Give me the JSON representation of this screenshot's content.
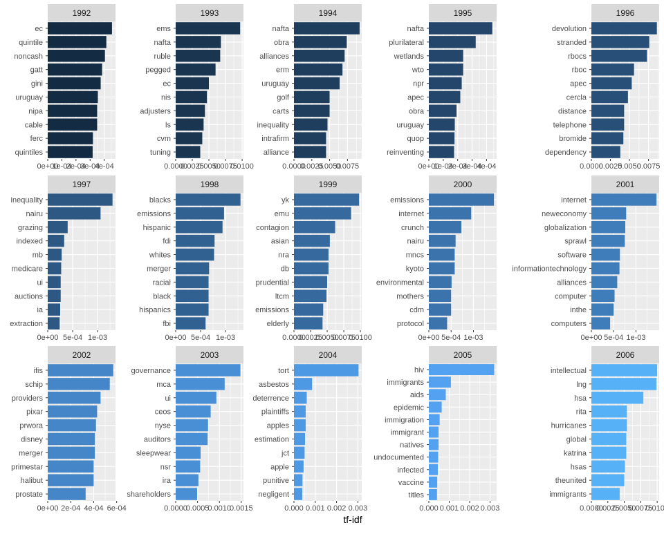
{
  "chart_data": {
    "type": "bar",
    "orientation": "horizontal",
    "layout": "facet-grid",
    "xlabel": "tf-idf",
    "ylabel": "",
    "grid": true,
    "legend": "none",
    "panels": [
      {
        "title": "1992",
        "xlim": [
          0,
          0.00048
        ],
        "ticks": [
          "0e+00",
          "1e-04",
          "2e-04",
          "3e-04",
          "4e-04"
        ],
        "tick_values": [
          0,
          0.0001,
          0.0002,
          0.0003,
          0.0004
        ],
        "categories": [
          "ec",
          "quintile",
          "noncash",
          "gatt",
          "gini",
          "uruguay",
          "nipa",
          "cable",
          "ferc",
          "quintiles"
        ],
        "values": [
          0.000455,
          0.000415,
          0.000405,
          0.000385,
          0.000375,
          0.000355,
          0.00035,
          0.00035,
          0.00032,
          0.000318
        ],
        "color": "#132b43"
      },
      {
        "title": "1993",
        "xlim": [
          0,
          0.0102
        ],
        "ticks": [
          "0.0000",
          "0.0025",
          "0.0050",
          "0.0075",
          "0.0100"
        ],
        "tick_values": [
          0,
          0.0025,
          0.005,
          0.0075,
          0.01
        ],
        "categories": [
          "ems",
          "nafta",
          "ruble",
          "pegged",
          "ec",
          "nis",
          "adjusters",
          "ls",
          "cvm",
          "tuning"
        ],
        "values": [
          0.0097,
          0.0068,
          0.0067,
          0.006,
          0.005,
          0.0047,
          0.0044,
          0.0042,
          0.004,
          0.0037
        ],
        "color": "#1a3550"
      },
      {
        "title": "1994",
        "xlim": [
          0,
          0.0095
        ],
        "ticks": [
          "0.0000",
          "0.0025",
          "0.0050",
          "0.0075"
        ],
        "tick_values": [
          0,
          0.0025,
          0.005,
          0.0075
        ],
        "categories": [
          "nafta",
          "obra",
          "alliances",
          "erm",
          "uruguay",
          "golf",
          "carts",
          "inequality",
          "intrafirm",
          "alliance"
        ],
        "values": [
          0.0092,
          0.0074,
          0.0071,
          0.0068,
          0.0064,
          0.005,
          0.005,
          0.0047,
          0.0045,
          0.0045
        ],
        "color": "#1f3e5d"
      },
      {
        "title": "1995",
        "xlim": [
          0,
          0.00047
        ],
        "ticks": [
          "0e+00",
          "1e-04",
          "2e-04",
          "3e-04",
          "4e-04"
        ],
        "tick_values": [
          0,
          0.0001,
          0.0002,
          0.0003,
          0.0004
        ],
        "categories": [
          "nafta",
          "plurilateral",
          "wetlands",
          "wto",
          "npr",
          "apec",
          "obra",
          "uruguay",
          "quop",
          "reinventing"
        ],
        "values": [
          0.00044,
          0.000325,
          0.000238,
          0.000238,
          0.000228,
          0.000218,
          0.000192,
          0.00018,
          0.000178,
          0.000175
        ],
        "color": "#23466a"
      },
      {
        "title": "1996",
        "xlim": [
          0,
          0.0089
        ],
        "ticks": [
          "0.0000",
          "0.0025",
          "0.0050",
          "0.0075"
        ],
        "tick_values": [
          0,
          0.0025,
          0.005,
          0.0075
        ],
        "categories": [
          "devolution",
          "stranded",
          "rbocs",
          "rboc",
          "apec",
          "cercla",
          "distance",
          "telephone",
          "bromide",
          "dependency"
        ],
        "values": [
          0.0086,
          0.0076,
          0.0073,
          0.0056,
          0.0053,
          0.0048,
          0.0043,
          0.0043,
          0.0042,
          0.0038
        ],
        "color": "#284f77"
      },
      {
        "title": "1997",
        "xlim": [
          0,
          0.00136
        ],
        "ticks": [
          "0e+00",
          "5e-04",
          "1e-03"
        ],
        "tick_values": [
          0,
          0.0005,
          0.001
        ],
        "categories": [
          "inequality",
          "nairu",
          "grazing",
          "indexed",
          "mb",
          "medicare",
          "ui",
          "auctions",
          "ia",
          "extraction"
        ],
        "values": [
          0.0013,
          0.00106,
          0.0004,
          0.00033,
          0.00028,
          0.00027,
          0.00026,
          0.00026,
          0.00025,
          0.00024
        ],
        "color": "#2d5884"
      },
      {
        "title": "1998",
        "xlim": [
          0,
          0.00136
        ],
        "ticks": [
          "0e+00",
          "5e-04",
          "1e-03"
        ],
        "tick_values": [
          0,
          0.0005,
          0.001
        ],
        "categories": [
          "blacks",
          "emissions",
          "hispanic",
          "fdi",
          "whites",
          "merger",
          "racial",
          "black",
          "hispanics",
          "fbi"
        ],
        "values": [
          0.0013,
          0.00097,
          0.00094,
          0.00078,
          0.00077,
          0.00067,
          0.00066,
          0.00066,
          0.00066,
          0.0006
        ],
        "color": "#316191"
      },
      {
        "title": "1999",
        "xlim": [
          0,
          0.0102
        ],
        "ticks": [
          "0.0000",
          "0.0025",
          "0.0050",
          "0.0075",
          "0.0100"
        ],
        "tick_values": [
          0,
          0.0025,
          0.005,
          0.0075,
          0.01
        ],
        "categories": [
          "yk",
          "emu",
          "contagion",
          "asian",
          "nra",
          "db",
          "prudential",
          "ltcm",
          "emissions",
          "elderly"
        ],
        "values": [
          0.0098,
          0.0086,
          0.0062,
          0.0054,
          0.0052,
          0.0052,
          0.005,
          0.0049,
          0.0044,
          0.0043
        ],
        "color": "#366a9f"
      },
      {
        "title": "2000",
        "xlim": [
          0,
          0.00152
        ],
        "ticks": [
          "0e+00",
          "5e-04",
          "1e-03"
        ],
        "tick_values": [
          0,
          0.0005,
          0.001
        ],
        "categories": [
          "emissions",
          "internet",
          "crunch",
          "nairu",
          "mncs",
          "kyoto",
          "environmental",
          "mothers",
          "cdm",
          "protocol"
        ],
        "values": [
          0.00146,
          0.00095,
          0.00073,
          0.0006,
          0.00058,
          0.00058,
          0.00051,
          0.0005,
          0.0005,
          0.00041
        ],
        "color": "#3b73ac"
      },
      {
        "title": "2001",
        "xlim": [
          0,
          0.00152
        ],
        "ticks": [
          "0e+00",
          "5e-04",
          "1e-03"
        ],
        "tick_values": [
          0,
          0.0005,
          0.001
        ],
        "categories": [
          "internet",
          "neweconomy",
          "globalization",
          "sprawl",
          "software",
          "informationtechnology",
          "alliances",
          "computer",
          "inthe",
          "computers"
        ],
        "values": [
          0.00146,
          0.00078,
          0.00076,
          0.00075,
          0.00064,
          0.00063,
          0.00058,
          0.00052,
          0.0005,
          0.00042
        ],
        "color": "#3f7cba"
      },
      {
        "title": "2002",
        "xlim": [
          0,
          0.00059
        ],
        "ticks": [
          "0e+00",
          "2e-04",
          "4e-04",
          "6e-04"
        ],
        "tick_values": [
          0,
          0.0002,
          0.0004,
          0.0006
        ],
        "categories": [
          "ifis",
          "schip",
          "providers",
          "pixar",
          "prwora",
          "disney",
          "merger",
          "primestar",
          "halibut",
          "prostate"
        ],
        "values": [
          0.00057,
          0.00054,
          0.00046,
          0.00043,
          0.00042,
          0.00041,
          0.00041,
          0.0004,
          0.0004,
          0.00033
        ],
        "color": "#4486c8"
      },
      {
        "title": "2003",
        "xlim": [
          0,
          0.00155
        ],
        "ticks": [
          "0.0000",
          "0.0005",
          "0.0010",
          "0.0015"
        ],
        "tick_values": [
          0,
          0.0005,
          0.001,
          0.0015
        ],
        "categories": [
          "governance",
          "mca",
          "ui",
          "ceos",
          "nyse",
          "auditors",
          "sleepwear",
          "nsr",
          "ira",
          "shareholders"
        ],
        "values": [
          0.00148,
          0.00112,
          0.00093,
          0.0008,
          0.00074,
          0.00073,
          0.00057,
          0.00056,
          0.00052,
          0.00049
        ],
        "color": "#498fd6"
      },
      {
        "title": "2004",
        "xlim": [
          0,
          0.00318
        ],
        "ticks": [
          "0.000",
          "0.001",
          "0.002",
          "0.003"
        ],
        "tick_values": [
          0,
          0.001,
          0.002,
          0.003
        ],
        "categories": [
          "tort",
          "asbestos",
          "deterrence",
          "plaintiffs",
          "apples",
          "estimation",
          "jct",
          "apple",
          "punitive",
          "negligent"
        ],
        "values": [
          0.00303,
          0.00085,
          0.0006,
          0.00055,
          0.00055,
          0.00052,
          0.0005,
          0.00045,
          0.0004,
          0.00039
        ],
        "color": "#4e99e4"
      },
      {
        "title": "2005",
        "xlim": [
          0,
          0.00332
        ],
        "ticks": [
          "0.000",
          "0.001",
          "0.002",
          "0.003"
        ],
        "tick_values": [
          0,
          0.001,
          0.002,
          0.003
        ],
        "categories": [
          "hiv",
          "immigrants",
          "aids",
          "epidemic",
          "immigration",
          "immigrant",
          "natives",
          "undocumented",
          "infected",
          "vaccine",
          "titles"
        ],
        "values": [
          0.0032,
          0.00108,
          0.00083,
          0.00063,
          0.00053,
          0.00048,
          0.00048,
          0.00046,
          0.00044,
          0.00041,
          0.0004
        ],
        "color": "#52a2f1"
      },
      {
        "title": "2006",
        "xlim": [
          0,
          0.0103
        ],
        "ticks": [
          "0.0000",
          "0.0025",
          "0.0050",
          "0.0075",
          "0.0100"
        ],
        "tick_values": [
          0,
          0.0025,
          0.005,
          0.0075,
          0.01
        ],
        "categories": [
          "intellectual",
          "lng",
          "hsa",
          "rita",
          "hurricanes",
          "global",
          "katrina",
          "hsas",
          "theunited",
          "immigrants"
        ],
        "values": [
          0.01,
          0.0099,
          0.0079,
          0.0054,
          0.0054,
          0.0053,
          0.0053,
          0.0051,
          0.005,
          0.0043
        ],
        "color": "#56b1f7"
      }
    ]
  }
}
